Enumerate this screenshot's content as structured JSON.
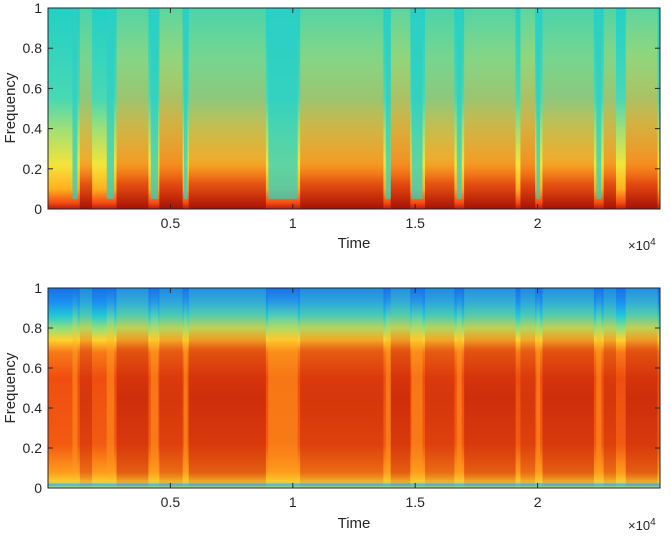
{
  "chart_data": [
    {
      "type": "heatmap",
      "title": "",
      "xlabel": "Time",
      "ylabel": "Frequency",
      "x_tick_values": [
        5000,
        10000,
        15000,
        20000
      ],
      "x_tick_labels": [
        "0.5",
        "1",
        "1.5",
        "2"
      ],
      "x_exponent_label": "×10",
      "x_exponent_power": "4",
      "y_tick_values": [
        0,
        0.2,
        0.4,
        0.6,
        0.8,
        1
      ],
      "y_tick_labels": [
        "0",
        "0.2",
        "0.4",
        "0.6",
        "0.8",
        "1"
      ],
      "xlim": [
        0,
        25000
      ],
      "ylim": [
        0,
        1
      ],
      "colormap": "jet",
      "grid": false
    },
    {
      "type": "heatmap",
      "title": "",
      "xlabel": "Time",
      "ylabel": "Frequency",
      "x_tick_values": [
        5000,
        10000,
        15000,
        20000
      ],
      "x_tick_labels": [
        "0.5",
        "1",
        "1.5",
        "2"
      ],
      "x_exponent_label": "×10",
      "x_exponent_power": "4",
      "y_tick_values": [
        0,
        0.2,
        0.4,
        0.6,
        0.8,
        1
      ],
      "y_tick_labels": [
        "0",
        "0.2",
        "0.4",
        "0.6",
        "0.8",
        "1"
      ],
      "xlim": [
        0,
        25000
      ],
      "ylim": [
        0,
        1
      ],
      "colormap": "jet",
      "grid": false
    }
  ]
}
